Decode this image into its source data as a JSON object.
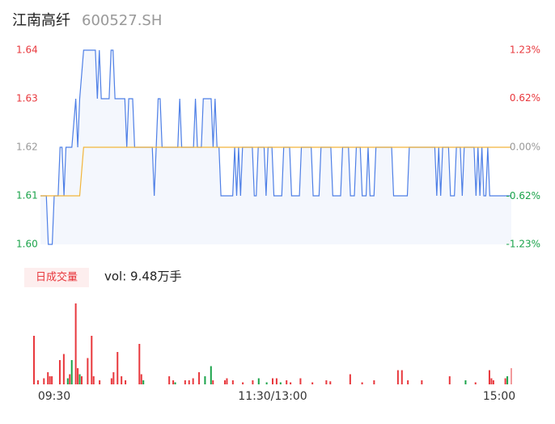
{
  "header": {
    "title": "江南高纤",
    "code": "600527.SH"
  },
  "chart_data": [
    {
      "type": "line",
      "ylim": [
        1.6,
        1.64
      ],
      "yticks": [
        1.64,
        1.63,
        1.62,
        1.61,
        {
          "value": 1.6,
          "label": "1.60"
        }
      ],
      "y2lim": [
        -1.23,
        1.23
      ],
      "y2ticks": [
        {
          "value": 1.23,
          "label": "1.23%"
        },
        {
          "value": 0.62,
          "label": "0.62%"
        },
        {
          "value": 0,
          "label": "0.00%"
        },
        {
          "value": -0.62,
          "label": "-0.62%"
        },
        {
          "value": -1.23,
          "label": "-1.23%"
        }
      ],
      "xlim": [
        0,
        240
      ],
      "series": [
        {
          "color": "#4e7fe6",
          "fill": "#f4f7fd",
          "x": [
            0,
            3,
            4,
            6,
            7,
            9,
            10,
            11,
            12,
            13,
            16,
            18,
            19,
            20,
            22,
            28,
            29,
            30,
            31,
            35,
            36,
            37,
            38,
            43,
            44,
            45,
            47,
            48,
            57,
            58,
            59,
            60,
            61,
            62,
            70,
            71,
            72,
            78,
            79,
            80,
            82,
            83,
            87,
            88,
            89,
            90,
            91,
            92,
            98,
            99,
            100,
            101,
            102,
            103,
            108,
            109,
            110,
            111,
            114,
            115,
            116,
            118,
            119,
            123,
            124,
            127,
            128,
            132,
            133,
            138,
            139,
            142,
            143,
            148,
            149,
            153,
            154,
            157,
            158,
            160,
            161,
            163,
            164,
            166,
            167,
            168,
            170,
            171,
            179,
            180,
            187,
            188,
            201,
            202,
            203,
            204,
            205,
            208,
            209,
            211,
            212,
            214,
            215,
            216,
            221,
            222,
            223,
            224,
            225,
            226,
            227,
            228,
            229,
            230,
            240
          ],
          "values": [
            1.61,
            1.61,
            1.6,
            1.6,
            1.61,
            1.61,
            1.62,
            1.62,
            1.61,
            1.62,
            1.62,
            1.63,
            1.62,
            1.63,
            1.64,
            1.64,
            1.63,
            1.64,
            1.63,
            1.63,
            1.64,
            1.64,
            1.63,
            1.63,
            1.62,
            1.63,
            1.63,
            1.62,
            1.62,
            1.61,
            1.62,
            1.63,
            1.63,
            1.62,
            1.62,
            1.63,
            1.62,
            1.62,
            1.63,
            1.62,
            1.62,
            1.63,
            1.63,
            1.62,
            1.63,
            1.62,
            1.62,
            1.61,
            1.61,
            1.62,
            1.61,
            1.62,
            1.61,
            1.62,
            1.62,
            1.61,
            1.61,
            1.62,
            1.62,
            1.61,
            1.62,
            1.62,
            1.61,
            1.61,
            1.62,
            1.62,
            1.61,
            1.61,
            1.62,
            1.62,
            1.61,
            1.61,
            1.62,
            1.62,
            1.61,
            1.61,
            1.62,
            1.62,
            1.61,
            1.61,
            1.62,
            1.62,
            1.61,
            1.61,
            1.62,
            1.61,
            1.61,
            1.62,
            1.62,
            1.61,
            1.61,
            1.62,
            1.62,
            1.61,
            1.62,
            1.61,
            1.62,
            1.62,
            1.61,
            1.61,
            1.62,
            1.62,
            1.61,
            1.62,
            1.62,
            1.61,
            1.62,
            1.61,
            1.62,
            1.61,
            1.61,
            1.62,
            1.61,
            1.61,
            1.61
          ]
        },
        {
          "color": "#f2b53a",
          "x": [
            0,
            20,
            22,
            240
          ],
          "values": [
            1.61,
            1.61,
            1.62,
            1.62
          ]
        }
      ]
    },
    {
      "type": "bar",
      "label": "日成交量",
      "vol_label": "vol: 9.48万手",
      "xlim": [
        0,
        240
      ],
      "ylim": [
        0,
        4000
      ],
      "xticks": [
        {
          "value": 0,
          "label": "09:30"
        },
        {
          "value": 120,
          "label": "11:30/13:00"
        },
        {
          "value": 240,
          "label": "15:00"
        }
      ],
      "x": [
        0,
        2,
        5,
        7,
        8,
        9,
        13,
        15,
        17,
        18,
        19,
        21,
        22,
        23,
        24,
        27,
        29,
        30,
        33,
        39,
        40,
        42,
        44,
        46,
        53,
        54,
        55,
        68,
        70,
        71,
        76,
        78,
        80,
        83,
        86,
        89,
        90,
        96,
        97,
        100,
        105,
        110,
        113,
        117,
        120,
        122,
        124,
        127,
        129,
        134,
        140,
        147,
        149,
        159,
        165,
        171,
        183,
        185,
        188,
        195,
        209,
        217,
        222,
        229,
        230,
        231,
        237,
        238,
        240
      ],
      "values": [
        2400,
        200,
        300,
        600,
        400,
        400,
        1200,
        1500,
        300,
        500,
        1200,
        4000,
        800,
        500,
        400,
        1300,
        2400,
        400,
        200,
        300,
        600,
        1600,
        400,
        200,
        2000,
        500,
        200,
        400,
        200,
        100,
        200,
        200,
        300,
        600,
        400,
        900,
        200,
        200,
        300,
        200,
        100,
        200,
        300,
        100,
        300,
        300,
        100,
        200,
        100,
        300,
        100,
        200,
        150,
        500,
        100,
        200,
        700,
        700,
        200,
        200,
        400,
        200,
        100,
        700,
        300,
        200,
        300,
        400,
        800
      ],
      "colors": [
        "#e8383d",
        "#e8383d",
        "#e8383d",
        "#e8383d",
        "#e8383d",
        "#e8383d",
        "#e8383d",
        "#e8383d",
        "#1aa34a",
        "#e8383d",
        "#1aa34a",
        "#e8383d",
        "#e8383d",
        "#1aa34a",
        "#e8383d",
        "#e8383d",
        "#e8383d",
        "#e8383d",
        "#e8383d",
        "#e8383d",
        "#e8383d",
        "#e8383d",
        "#e8383d",
        "#e8383d",
        "#e8383d",
        "#e8383d",
        "#1aa34a",
        "#e8383d",
        "#e8383d",
        "#1aa34a",
        "#e8383d",
        "#e8383d",
        "#e8383d",
        "#e8383d",
        "#1aa34a",
        "#1aa34a",
        "#e8383d",
        "#e8383d",
        "#e8383d",
        "#e8383d",
        "#e8383d",
        "#e8383d",
        "#1aa34a",
        "#1aa34a",
        "#e8383d",
        "#e8383d",
        "#1aa34a",
        "#e8383d",
        "#e8383d",
        "#e8383d",
        "#e8383d",
        "#e8383d",
        "#e8383d",
        "#e8383d",
        "#e8383d",
        "#e8383d",
        "#e8383d",
        "#e8383d",
        "#e8383d",
        "#e8383d",
        "#e8383d",
        "#1aa34a",
        "#e8383d",
        "#e8383d",
        "#e8383d",
        "#e8383d",
        "#e8383d",
        "#1aa34a",
        "#f29a9c"
      ]
    }
  ]
}
